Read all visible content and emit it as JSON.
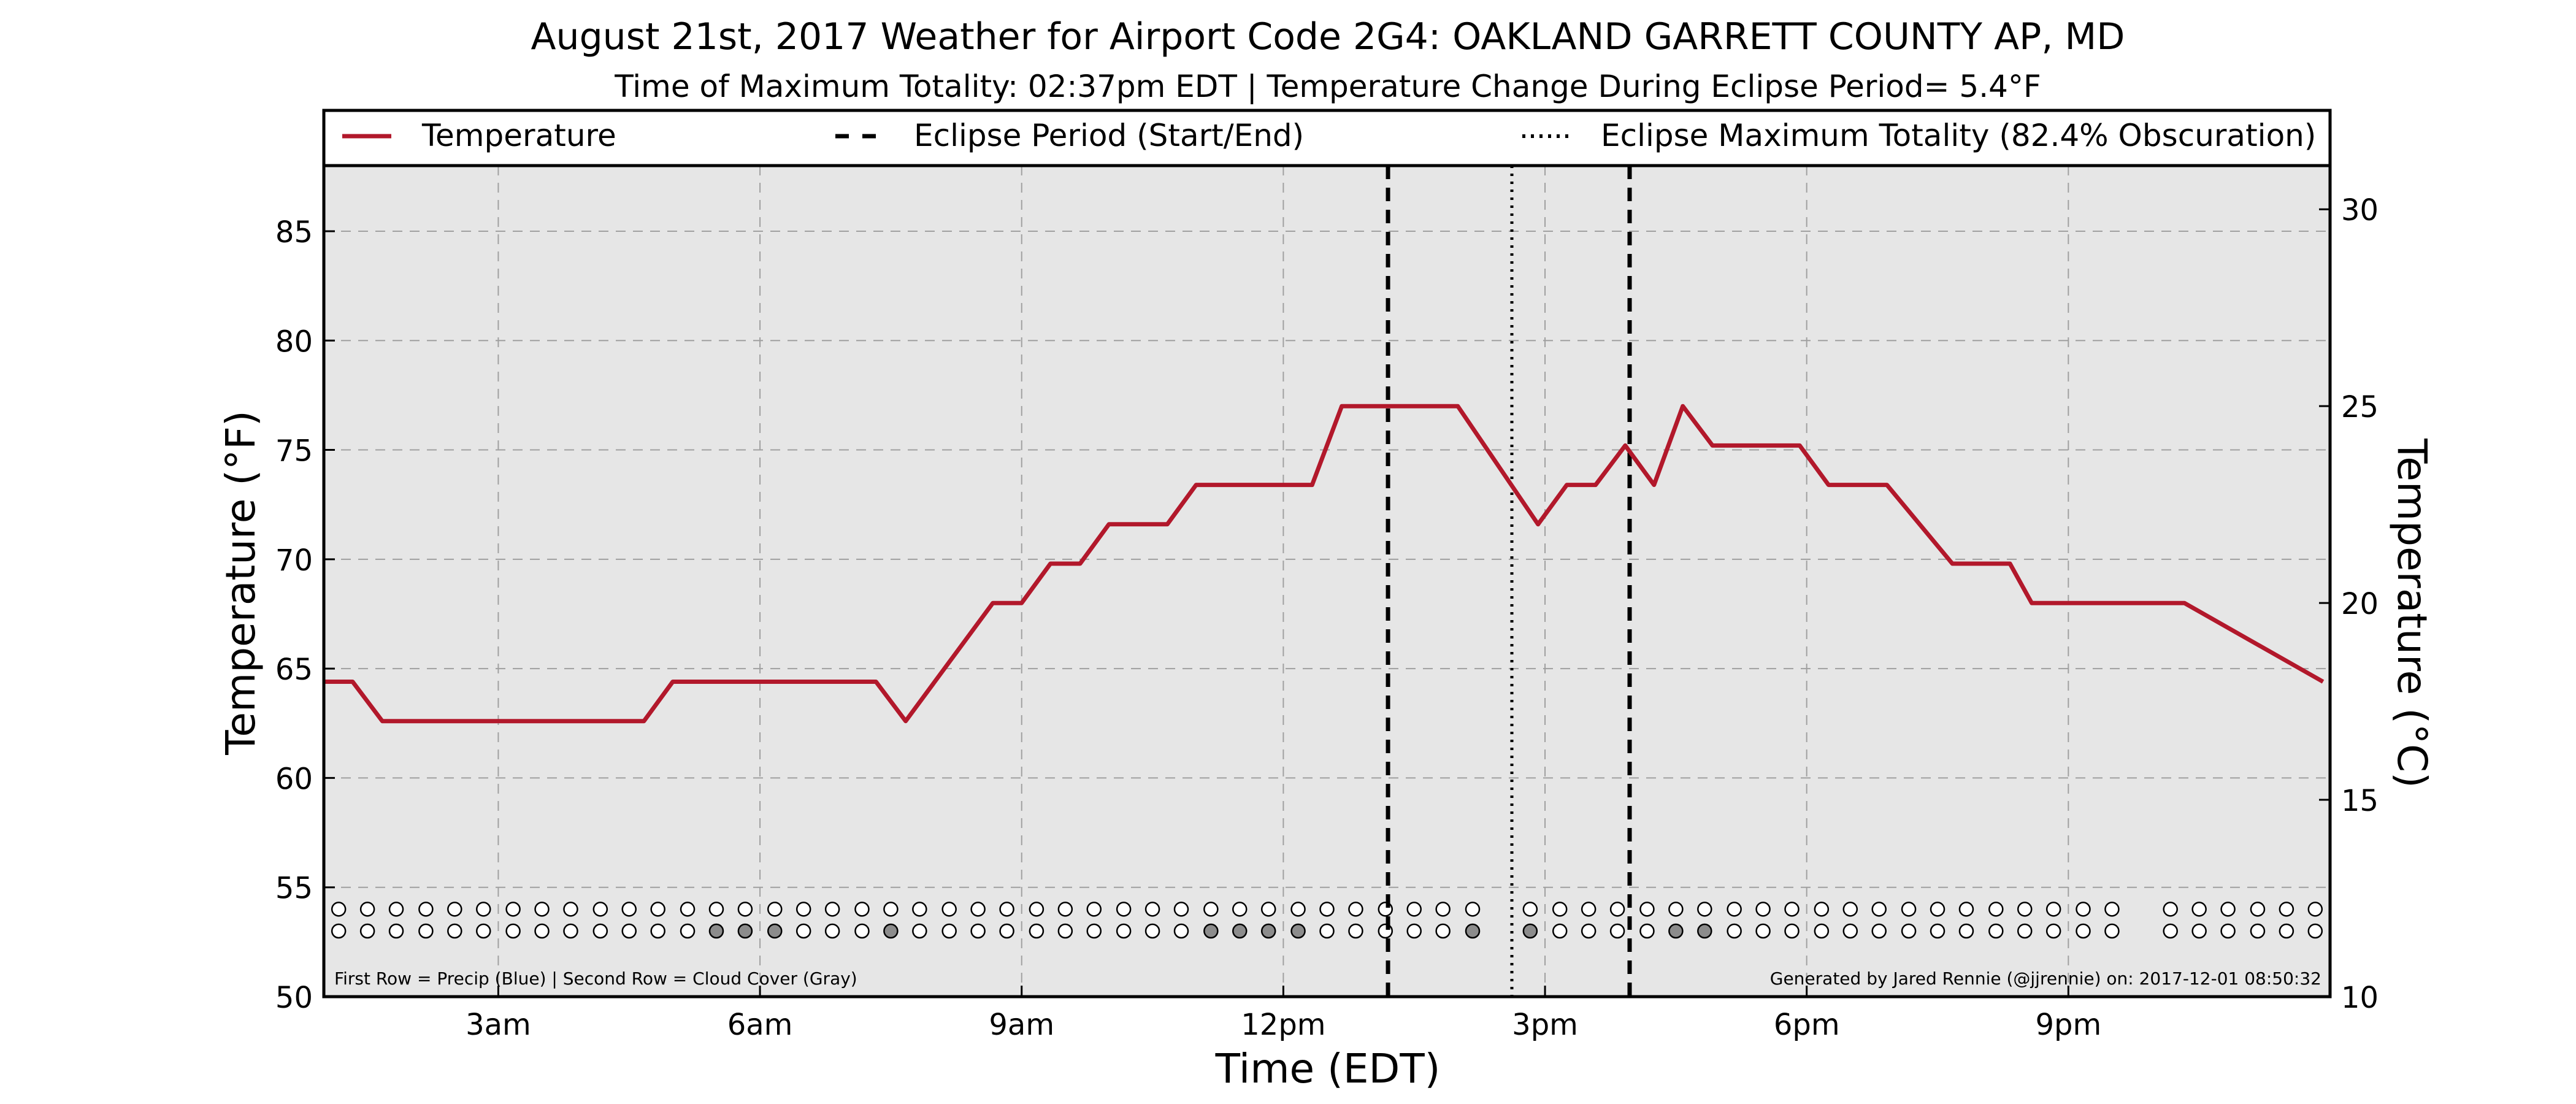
{
  "chart_data": {
    "type": "line",
    "title": "August 21st, 2017 Weather for Airport Code 2G4: OAKLAND GARRETT COUNTY AP, MD",
    "subtitle": "Time of Maximum Totality: 02:37pm EDT | Temperature Change During Eclipse Period= 5.4°F",
    "xlabel": "Time (EDT)",
    "ylabel": "Temperature (°F)",
    "ylabel_right": "Temperature (°C)",
    "xlim": [
      1.0,
      24.0
    ],
    "ylim": [
      50,
      88
    ],
    "ylim_right": [
      10,
      31.11
    ],
    "x_ticks": [
      {
        "x": 3,
        "label": "3am"
      },
      {
        "x": 6,
        "label": "6am"
      },
      {
        "x": 9,
        "label": "9am"
      },
      {
        "x": 12,
        "label": "12pm"
      },
      {
        "x": 15,
        "label": "3pm"
      },
      {
        "x": 18,
        "label": "6pm"
      },
      {
        "x": 21,
        "label": "9pm"
      }
    ],
    "y_ticks": [
      50,
      55,
      60,
      65,
      70,
      75,
      80,
      85
    ],
    "y_ticks_right": [
      10,
      15,
      20,
      25,
      30
    ],
    "grid": true,
    "legend": {
      "placement": "top, above plot",
      "entries": [
        {
          "label": "Temperature",
          "style": "solid",
          "color": "#b2182b"
        },
        {
          "label": "Eclipse Period (Start/End)",
          "style": "dashed",
          "color": "#000000"
        },
        {
          "label": "Eclipse Maximum Totality (82.4% Obscuration)",
          "style": "dotted",
          "color": "#000000"
        }
      ]
    },
    "series": [
      {
        "name": "Temperature",
        "color": "#b2182b",
        "points": [
          [
            1.0,
            64.4
          ],
          [
            1.33,
            64.4
          ],
          [
            1.67,
            62.6
          ],
          [
            4.67,
            62.6
          ],
          [
            5.0,
            64.4
          ],
          [
            7.33,
            64.4
          ],
          [
            7.67,
            62.6
          ],
          [
            8.67,
            68.0
          ],
          [
            9.0,
            68.0
          ],
          [
            9.33,
            69.8
          ],
          [
            9.67,
            69.8
          ],
          [
            10.0,
            71.6
          ],
          [
            10.67,
            71.6
          ],
          [
            11.0,
            73.4
          ],
          [
            12.33,
            73.4
          ],
          [
            12.67,
            77.0
          ],
          [
            14.0,
            77.0
          ],
          [
            14.92,
            71.6
          ],
          [
            15.25,
            73.4
          ],
          [
            15.58,
            73.4
          ],
          [
            15.92,
            75.2
          ],
          [
            16.25,
            73.4
          ],
          [
            16.58,
            77.0
          ],
          [
            16.92,
            75.2
          ],
          [
            17.92,
            75.2
          ],
          [
            18.25,
            73.4
          ],
          [
            18.92,
            73.4
          ],
          [
            19.67,
            69.8
          ],
          [
            20.33,
            69.8
          ],
          [
            20.58,
            68.0
          ],
          [
            22.33,
            68.0
          ],
          [
            23.92,
            64.4
          ]
        ]
      }
    ],
    "eclipse_start_x": 13.2,
    "eclipse_end_x": 15.97,
    "eclipse_max_x": 14.62,
    "precip_row": {
      "y": 54.0,
      "x": [
        1.17,
        1.5,
        1.83,
        2.17,
        2.5,
        2.83,
        3.17,
        3.5,
        3.83,
        4.17,
        4.5,
        4.83,
        5.17,
        5.5,
        5.83,
        6.17,
        6.5,
        6.83,
        7.17,
        7.5,
        7.83,
        8.17,
        8.5,
        8.83,
        9.17,
        9.5,
        9.83,
        10.17,
        10.5,
        10.83,
        11.17,
        11.5,
        11.83,
        12.17,
        12.5,
        12.83,
        13.17,
        13.5,
        13.83,
        14.17,
        14.83,
        15.17,
        15.5,
        15.83,
        16.17,
        16.5,
        16.83,
        17.17,
        17.5,
        17.83,
        18.17,
        18.5,
        18.83,
        19.17,
        19.5,
        19.83,
        20.17,
        20.5,
        20.83,
        21.17,
        21.5,
        22.17,
        22.5,
        22.83,
        23.17,
        23.5,
        23.83
      ],
      "filled": []
    },
    "cloud_row": {
      "y": 53.0,
      "x": [
        1.17,
        1.5,
        1.83,
        2.17,
        2.5,
        2.83,
        3.17,
        3.5,
        3.83,
        4.17,
        4.5,
        4.83,
        5.17,
        5.5,
        5.83,
        6.17,
        6.5,
        6.83,
        7.17,
        7.5,
        7.83,
        8.17,
        8.5,
        8.83,
        9.17,
        9.5,
        9.83,
        10.17,
        10.5,
        10.83,
        11.17,
        11.5,
        11.83,
        12.17,
        12.5,
        12.83,
        13.17,
        13.5,
        13.83,
        14.17,
        14.83,
        15.17,
        15.5,
        15.83,
        16.17,
        16.5,
        16.83,
        17.17,
        17.5,
        17.83,
        18.17,
        18.5,
        18.83,
        19.17,
        19.5,
        19.83,
        20.17,
        20.5,
        20.83,
        21.17,
        21.5,
        22.17,
        22.5,
        22.83,
        23.17,
        23.5,
        23.83
      ],
      "filled": [
        5.5,
        5.83,
        6.17,
        7.5,
        11.17,
        11.5,
        11.83,
        12.17,
        14.17,
        14.83,
        16.5,
        16.83
      ]
    },
    "footnote_left": "First Row = Precip (Blue) | Second Row = Cloud Cover (Gray)",
    "footnote_right": "Generated by Jared Rennie (@jjrennie) on: 2017-12-01 08:50:32"
  }
}
